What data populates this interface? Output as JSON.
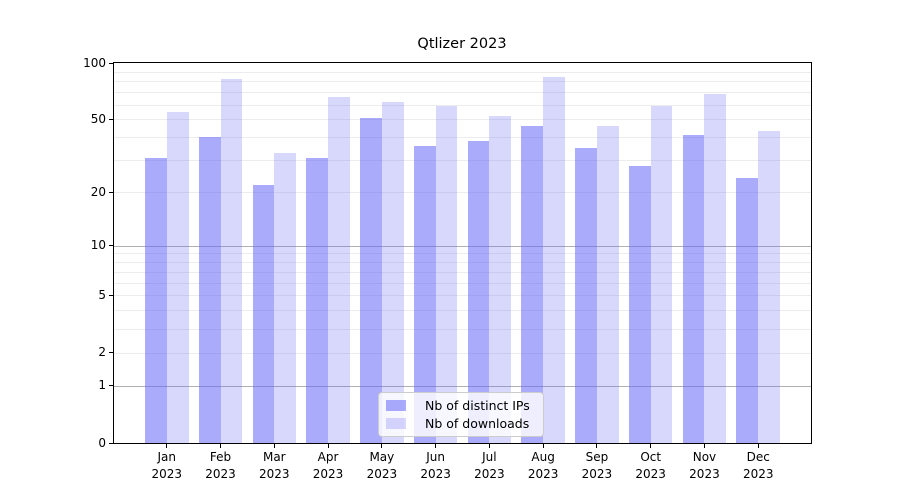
{
  "title": "Qtlizer 2023",
  "colors": {
    "bar_dark": "rgba(100,100,248,0.54)",
    "bar_light": "rgba(100,100,248,0.25)",
    "grid_major": "#b0b0b0",
    "grid_minor": "#ececec",
    "axis": "#000000"
  },
  "chart_data": {
    "type": "bar",
    "title": "Qtlizer 2023",
    "categories": [
      "Jan 2023",
      "Feb 2023",
      "Mar 2023",
      "Apr 2023",
      "May 2023",
      "Jun 2023",
      "Jul 2023",
      "Aug 2023",
      "Sep 2023",
      "Oct 2023",
      "Nov 2023",
      "Dec 2023"
    ],
    "x_tick_top": [
      "Jan",
      "Feb",
      "Mar",
      "Apr",
      "May",
      "Jun",
      "Jul",
      "Aug",
      "Sep",
      "Oct",
      "Nov",
      "Dec"
    ],
    "x_tick_bottom": "2023",
    "series": [
      {
        "name": "Nb of distinct IPs",
        "color": "rgba(100,100,248,0.54)",
        "values": [
          31,
          40,
          22,
          31,
          51,
          36,
          38,
          46,
          35,
          28,
          41,
          24
        ]
      },
      {
        "name": "Nb of downloads",
        "color": "rgba(100,100,248,0.25)",
        "values": [
          55,
          82,
          33,
          66,
          62,
          59,
          52,
          84,
          46,
          59,
          68,
          43
        ]
      }
    ],
    "xlabel": "",
    "ylabel": "",
    "y_scale": "log1p",
    "ylim": [
      0,
      100
    ],
    "y_ticks": [
      0,
      1,
      2,
      5,
      10,
      20,
      50,
      100
    ],
    "y_gridlines_major": [
      1,
      10,
      100
    ],
    "y_gridlines_minor": [
      2,
      3,
      4,
      5,
      6,
      7,
      8,
      9,
      20,
      30,
      40,
      50,
      60,
      70,
      80,
      90
    ],
    "grid": true,
    "legend_position": "lower center"
  }
}
